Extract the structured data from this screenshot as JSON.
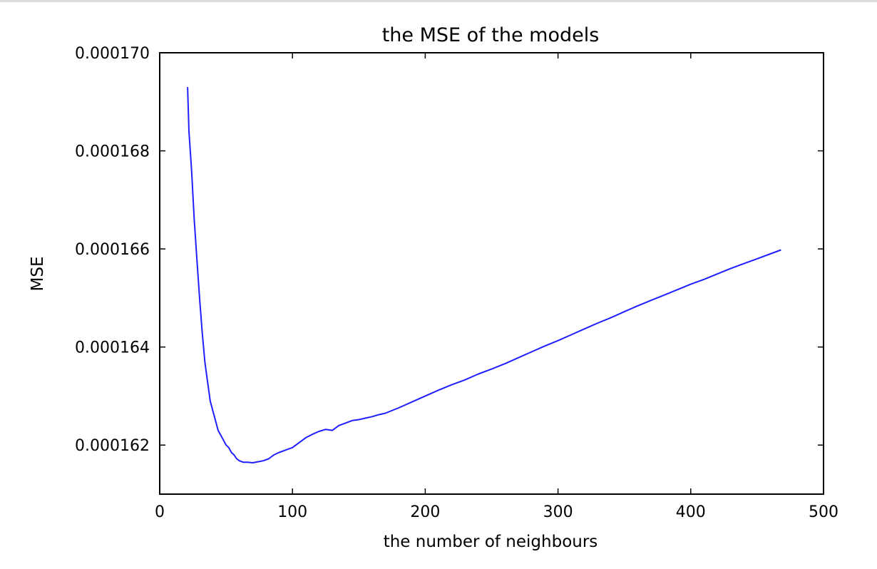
{
  "chart_data": {
    "type": "line",
    "title": "the MSE of the models",
    "xlabel": "the number of neighbours",
    "ylabel": "MSE",
    "xlim": [
      0,
      500
    ],
    "ylim": [
      0.000161,
      0.00017
    ],
    "xticks": [
      0,
      100,
      200,
      300,
      400,
      500
    ],
    "xtick_labels": [
      "0",
      "100",
      "200",
      "300",
      "400",
      "500"
    ],
    "yticks": [
      0.000162,
      0.000164,
      0.000166,
      0.000168,
      0.00017
    ],
    "ytick_labels": [
      "0.000162",
      "0.000164",
      "0.000166",
      "0.000168",
      "0.000170"
    ],
    "grid": false,
    "series": [
      {
        "color": "#1f1fff",
        "x": [
          21,
          22,
          24,
          26,
          28,
          30,
          32,
          34,
          36,
          38,
          40,
          42,
          44,
          46,
          48,
          50,
          52,
          54,
          56,
          58,
          60,
          63,
          66,
          70,
          74,
          78,
          82,
          86,
          90,
          95,
          100,
          105,
          110,
          115,
          120,
          125,
          130,
          135,
          140,
          145,
          150,
          155,
          160,
          165,
          170,
          180,
          190,
          200,
          210,
          220,
          230,
          240,
          250,
          260,
          270,
          280,
          290,
          300,
          310,
          320,
          330,
          340,
          350,
          360,
          370,
          380,
          390,
          400,
          410,
          420,
          430,
          440,
          450,
          460,
          468
        ],
        "y": [
          0.0001693,
          0.0001684,
          0.0001676,
          0.0001666,
          0.0001658,
          0.000165,
          0.0001643,
          0.0001637,
          0.0001633,
          0.0001629,
          0.0001627,
          0.0001625,
          0.0001623,
          0.0001622,
          0.0001621,
          0.000162,
          0.00016195,
          0.00016185,
          0.0001618,
          0.00016172,
          0.00016168,
          0.00016165,
          0.00016165,
          0.00016164,
          0.00016166,
          0.00016168,
          0.00016172,
          0.0001618,
          0.00016185,
          0.0001619,
          0.00016195,
          0.00016205,
          0.00016215,
          0.00016222,
          0.00016228,
          0.00016232,
          0.0001623,
          0.0001624,
          0.00016245,
          0.0001625,
          0.00016252,
          0.00016255,
          0.00016258,
          0.00016262,
          0.00016265,
          0.00016276,
          0.00016288,
          0.000163,
          0.00016312,
          0.00016323,
          0.00016333,
          0.00016345,
          0.00016355,
          0.00016366,
          0.00016378,
          0.0001639,
          0.00016402,
          0.00016413,
          0.00016425,
          0.00016437,
          0.00016449,
          0.0001646,
          0.00016472,
          0.00016484,
          0.00016495,
          0.00016506,
          0.00016517,
          0.00016528,
          0.00016538,
          0.00016549,
          0.0001656,
          0.0001657,
          0.0001658,
          0.0001659,
          0.00016598
        ]
      }
    ]
  }
}
